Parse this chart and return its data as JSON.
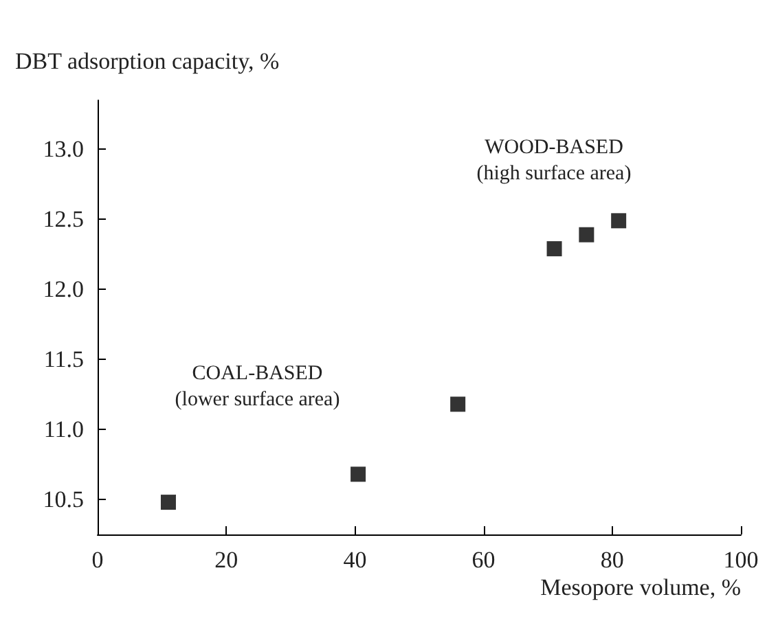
{
  "chart_data": {
    "type": "scatter",
    "xlabel": "Mesopore volume, %",
    "ylabel": "DBT adsorption capacity, %",
    "x": [
      11,
      40.5,
      56,
      71,
      76,
      81
    ],
    "series": [
      {
        "color": "#000000",
        "values": [
          10.48,
          10.68,
          11.18,
          12.29,
          12.39,
          12.49
        ]
      }
    ],
    "xlim": [
      0,
      100
    ],
    "xticks": [
      0,
      20,
      40,
      60,
      80,
      100
    ],
    "ylim": [
      10.25,
      13.35
    ],
    "yticks": [
      {
        "value": 10.5,
        "label": "10.5"
      },
      {
        "value": 11,
        "label": "11.0"
      },
      {
        "value": 11.5,
        "label": "11.5"
      },
      {
        "value": 12,
        "label": "12.0"
      },
      {
        "value": 12.5,
        "label": "12.5"
      },
      {
        "value": 13,
        "label": "13.0"
      }
    ],
    "marker": "square",
    "grid": false,
    "annotations": [
      "WOOD-BASED\n(high surface area)",
      "COAL-BASED\n(lower surface area)"
    ]
  }
}
